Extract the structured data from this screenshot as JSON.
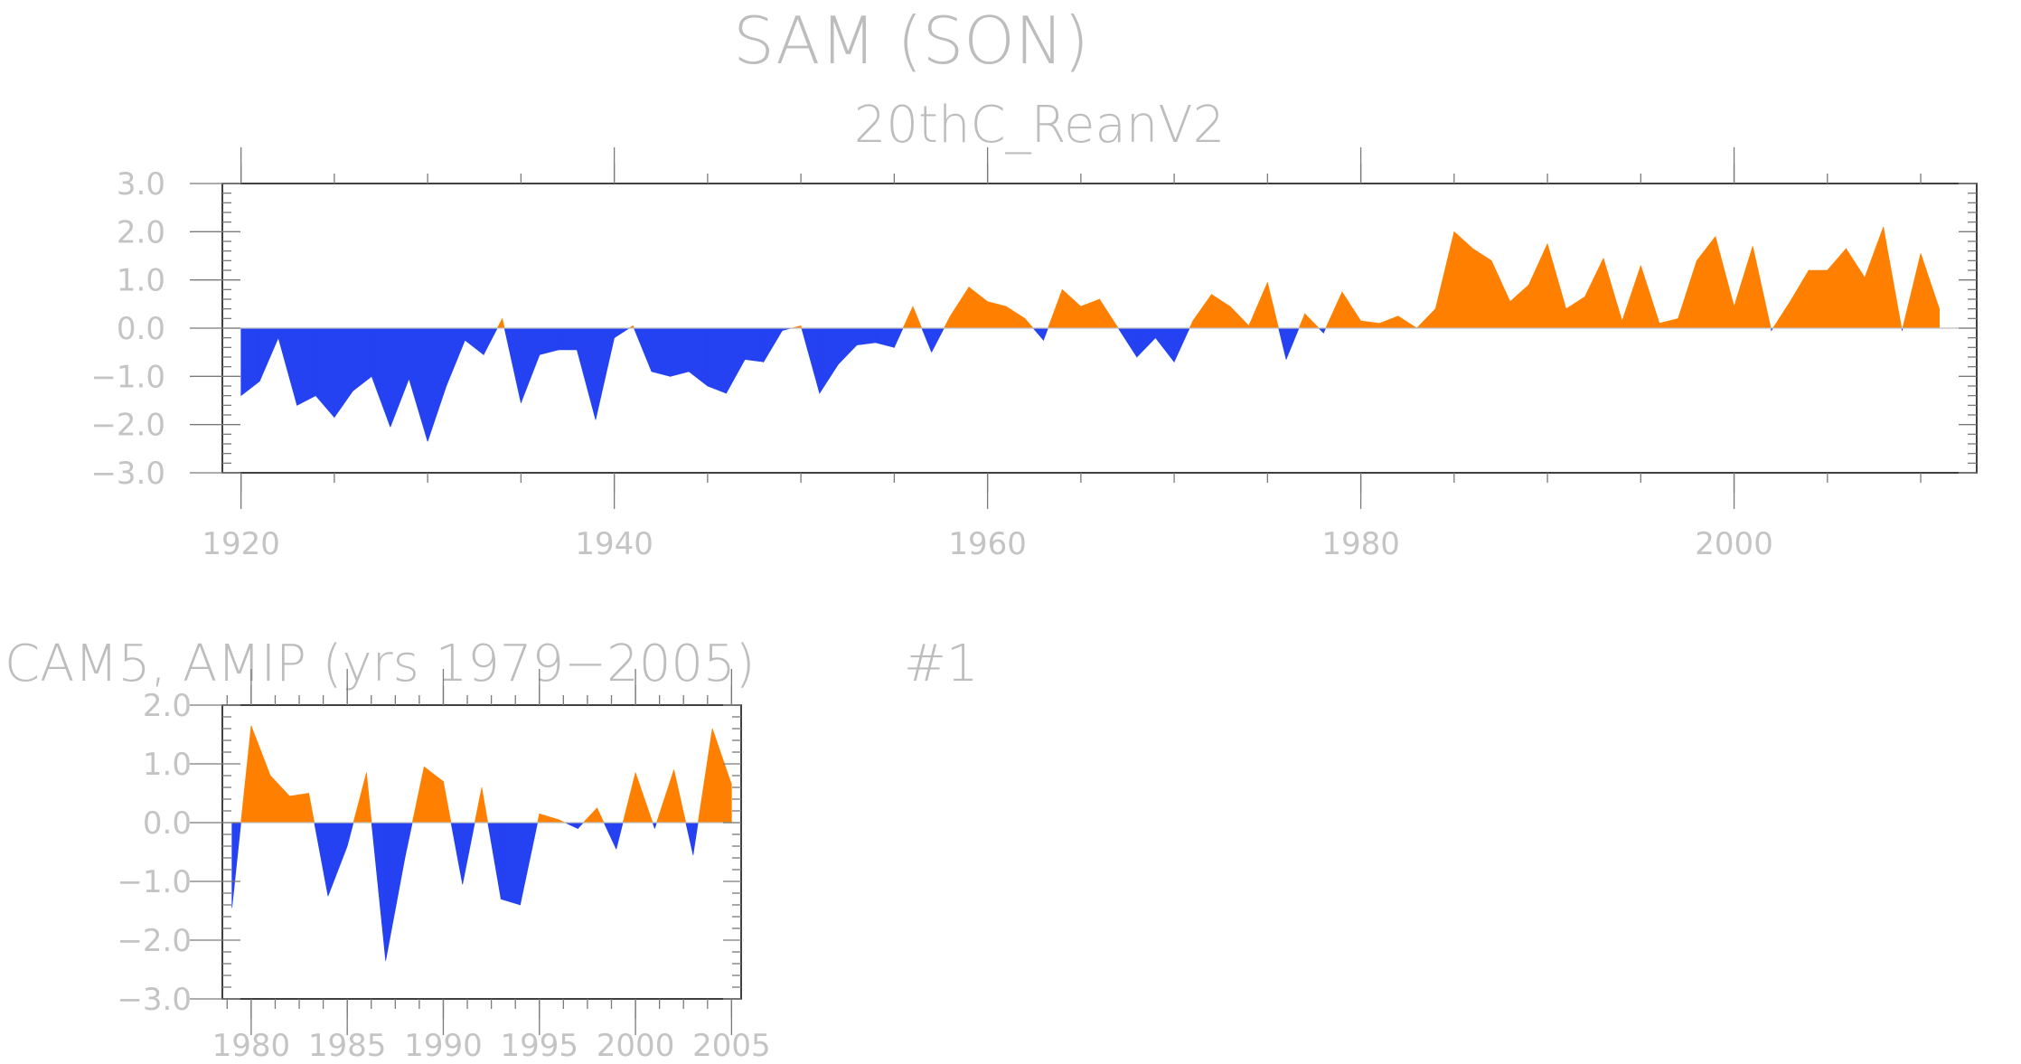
{
  "figure": {
    "title": "SAM (SON)",
    "subtitle": "20thC_ReanV2",
    "panel2_title": "CAM5, AMIP (yrs 1979−2005)",
    "panel2_label": "#1"
  },
  "colors": {
    "positive": "#ff8000",
    "negative": "#2441f2",
    "text": "#bdbdbd"
  },
  "chart_data": [
    {
      "type": "area",
      "title": "20thC_ReanV2",
      "xlabel": "",
      "ylabel": "",
      "xlim": [
        1919,
        2013
      ],
      "ylim": [
        -3,
        3
      ],
      "x_ticks": [
        1920,
        1940,
        1960,
        1980,
        2000
      ],
      "x_tick_labels": [
        "1920",
        "1940",
        "1960",
        "1980",
        "2000"
      ],
      "y_ticks": [
        3,
        2,
        1,
        0,
        -1,
        -2,
        -3
      ],
      "y_tick_labels": [
        "3.0",
        "2.0",
        "1.0",
        "0.0",
        "−1.0",
        "−2.0",
        "−3.0"
      ],
      "fill_colors": {
        "above_zero": "#ff8000",
        "below_zero": "#2441f2"
      },
      "x": [
        1920,
        1921,
        1922,
        1923,
        1924,
        1925,
        1926,
        1927,
        1928,
        1929,
        1930,
        1931,
        1932,
        1933,
        1934,
        1935,
        1936,
        1937,
        1938,
        1939,
        1940,
        1941,
        1942,
        1943,
        1944,
        1945,
        1946,
        1947,
        1948,
        1949,
        1950,
        1951,
        1952,
        1953,
        1954,
        1955,
        1956,
        1957,
        1958,
        1959,
        1960,
        1961,
        1962,
        1963,
        1964,
        1965,
        1966,
        1967,
        1968,
        1969,
        1970,
        1971,
        1972,
        1973,
        1974,
        1975,
        1976,
        1977,
        1978,
        1979,
        1980,
        1981,
        1982,
        1983,
        1984,
        1985,
        1986,
        1987,
        1988,
        1989,
        1990,
        1991,
        1992,
        1993,
        1994,
        1995,
        1996,
        1997,
        1998,
        1999,
        2000,
        2001,
        2002,
        2003,
        2004,
        2005,
        2006,
        2007,
        2008,
        2009,
        2010,
        2011
      ],
      "y": [
        -1.4,
        -1.1,
        -0.2,
        -1.6,
        -1.4,
        -1.85,
        -1.3,
        -1.0,
        -2.05,
        -1.05,
        -2.35,
        -1.2,
        -0.25,
        -0.55,
        0.2,
        -1.55,
        -0.55,
        -0.45,
        -0.45,
        -1.9,
        -0.2,
        0.05,
        -0.9,
        -1.0,
        -0.9,
        -1.2,
        -1.35,
        -0.65,
        -0.7,
        -0.05,
        0.05,
        -1.35,
        -0.75,
        -0.35,
        -0.3,
        -0.4,
        0.45,
        -0.5,
        0.25,
        0.85,
        0.55,
        0.45,
        0.2,
        -0.25,
        0.8,
        0.45,
        0.6,
        0.0,
        -0.6,
        -0.2,
        -0.7,
        0.15,
        0.7,
        0.45,
        0.05,
        0.95,
        -0.65,
        0.3,
        -0.1,
        0.75,
        0.15,
        0.1,
        0.25,
        0.0,
        0.4,
        2.0,
        1.65,
        1.4,
        0.55,
        0.9,
        1.75,
        0.4,
        0.65,
        1.45,
        0.15,
        1.3,
        0.1,
        0.2,
        1.4,
        1.9,
        0.45,
        1.7,
        -0.05,
        0.55,
        1.2,
        1.2,
        1.65,
        1.05,
        2.1,
        -0.05,
        1.55,
        0.4
      ]
    },
    {
      "type": "area",
      "title": "CAM5, AMIP (yrs 1979−2005)",
      "xlabel": "",
      "ylabel": "",
      "xlim": [
        1978.5,
        2005.5
      ],
      "ylim": [
        -3,
        2
      ],
      "x_ticks": [
        1980,
        1985,
        1990,
        1995,
        2000,
        2005
      ],
      "x_tick_labels": [
        "1980",
        "1985",
        "1990",
        "1995",
        "2000",
        "2005"
      ],
      "y_ticks": [
        2,
        1,
        0,
        -1,
        -2,
        -3
      ],
      "y_tick_labels": [
        "2.0",
        "1.0",
        "0.0",
        "−1.0",
        "−2.0",
        "−3.0"
      ],
      "fill_colors": {
        "above_zero": "#ff8000",
        "below_zero": "#2441f2"
      },
      "x": [
        1979,
        1980,
        1981,
        1982,
        1983,
        1984,
        1985,
        1986,
        1987,
        1988,
        1989,
        1990,
        1991,
        1992,
        1993,
        1994,
        1995,
        1996,
        1997,
        1998,
        1999,
        2000,
        2001,
        2002,
        2003,
        2004,
        2005
      ],
      "y": [
        -1.45,
        1.65,
        0.8,
        0.45,
        0.5,
        -1.25,
        -0.4,
        0.85,
        -2.35,
        -0.6,
        0.95,
        0.7,
        -1.05,
        0.6,
        -1.3,
        -1.4,
        0.15,
        0.05,
        -0.1,
        0.25,
        -0.45,
        0.85,
        -0.1,
        0.9,
        -0.55,
        1.6,
        0.65
      ]
    }
  ]
}
